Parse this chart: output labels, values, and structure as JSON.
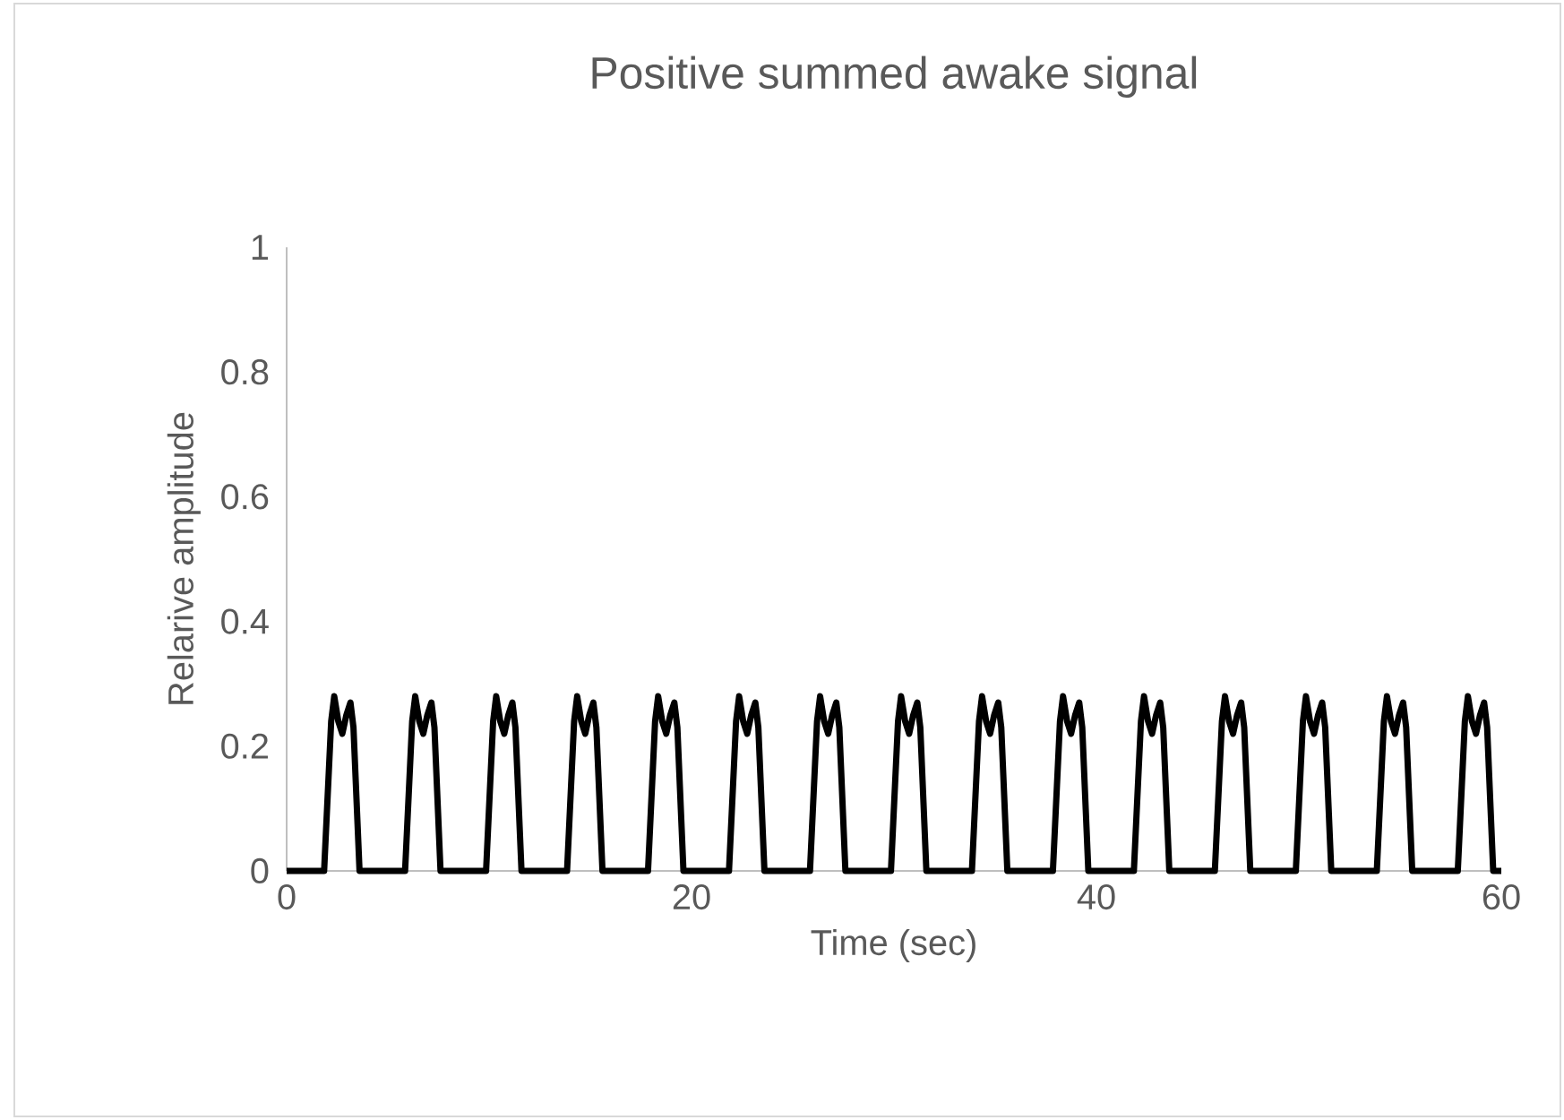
{
  "chart_data": {
    "type": "line",
    "title": "Positive summed awake signal",
    "xlabel": "Time (sec)",
    "ylabel": "Relarive amplitude",
    "x": [
      0,
      1.85,
      2.2,
      2.35,
      2.55,
      2.75,
      2.95,
      3.15,
      3.3,
      3.6,
      5.85,
      6.2,
      6.35,
      6.55,
      6.75,
      6.95,
      7.15,
      7.3,
      7.6,
      9.85,
      10.2,
      10.35,
      10.55,
      10.75,
      10.95,
      11.15,
      11.3,
      11.6,
      13.85,
      14.2,
      14.35,
      14.55,
      14.75,
      14.95,
      15.15,
      15.3,
      15.6,
      17.85,
      18.2,
      18.35,
      18.55,
      18.75,
      18.95,
      19.15,
      19.3,
      19.6,
      21.85,
      22.2,
      22.35,
      22.55,
      22.75,
      22.95,
      23.15,
      23.3,
      23.6,
      25.85,
      26.2,
      26.35,
      26.55,
      26.75,
      26.95,
      27.15,
      27.3,
      27.6,
      29.85,
      30.2,
      30.35,
      30.55,
      30.75,
      30.95,
      31.15,
      31.3,
      31.6,
      33.85,
      34.2,
      34.35,
      34.55,
      34.75,
      34.95,
      35.15,
      35.3,
      35.6,
      37.85,
      38.2,
      38.35,
      38.55,
      38.75,
      38.95,
      39.15,
      39.3,
      39.6,
      41.85,
      42.2,
      42.35,
      42.55,
      42.75,
      42.95,
      43.15,
      43.3,
      43.6,
      45.85,
      46.2,
      46.35,
      46.55,
      46.75,
      46.95,
      47.15,
      47.3,
      47.6,
      49.85,
      50.2,
      50.35,
      50.55,
      50.75,
      50.95,
      51.15,
      51.3,
      51.6,
      53.85,
      54.2,
      54.35,
      54.55,
      54.75,
      54.95,
      55.15,
      55.3,
      55.6,
      57.85,
      58.2,
      58.35,
      58.55,
      58.75,
      58.95,
      59.15,
      59.3,
      59.6,
      60
    ],
    "series": [
      {
        "color": "#000000",
        "values": [
          0,
          0,
          0.24,
          0.28,
          0.24,
          0.22,
          0.25,
          0.27,
          0.23,
          0,
          0,
          0.24,
          0.28,
          0.24,
          0.22,
          0.25,
          0.27,
          0.23,
          0,
          0,
          0.24,
          0.28,
          0.24,
          0.22,
          0.25,
          0.27,
          0.23,
          0,
          0,
          0.24,
          0.28,
          0.24,
          0.22,
          0.25,
          0.27,
          0.23,
          0,
          0,
          0.24,
          0.28,
          0.24,
          0.22,
          0.25,
          0.27,
          0.23,
          0,
          0,
          0.24,
          0.28,
          0.24,
          0.22,
          0.25,
          0.27,
          0.23,
          0,
          0,
          0.24,
          0.28,
          0.24,
          0.22,
          0.25,
          0.27,
          0.23,
          0,
          0,
          0.24,
          0.28,
          0.24,
          0.22,
          0.25,
          0.27,
          0.23,
          0,
          0,
          0.24,
          0.28,
          0.24,
          0.22,
          0.25,
          0.27,
          0.23,
          0,
          0,
          0.24,
          0.28,
          0.24,
          0.22,
          0.25,
          0.27,
          0.23,
          0,
          0,
          0.24,
          0.28,
          0.24,
          0.22,
          0.25,
          0.27,
          0.23,
          0,
          0,
          0.24,
          0.28,
          0.24,
          0.22,
          0.25,
          0.27,
          0.23,
          0,
          0,
          0.24,
          0.28,
          0.24,
          0.22,
          0.25,
          0.27,
          0.23,
          0,
          0,
          0.24,
          0.28,
          0.24,
          0.22,
          0.25,
          0.27,
          0.23,
          0,
          0,
          0.24,
          0.28,
          0.24,
          0.22,
          0.25,
          0.27,
          0.23,
          0,
          0
        ]
      }
    ],
    "xlim": [
      0,
      60
    ],
    "ylim": [
      0,
      1
    ],
    "xticks": [
      0,
      20,
      40,
      60
    ],
    "yticks": [
      0,
      0.2,
      0.4,
      0.6,
      0.8,
      1
    ],
    "marker": "none",
    "line_style": "solid"
  }
}
